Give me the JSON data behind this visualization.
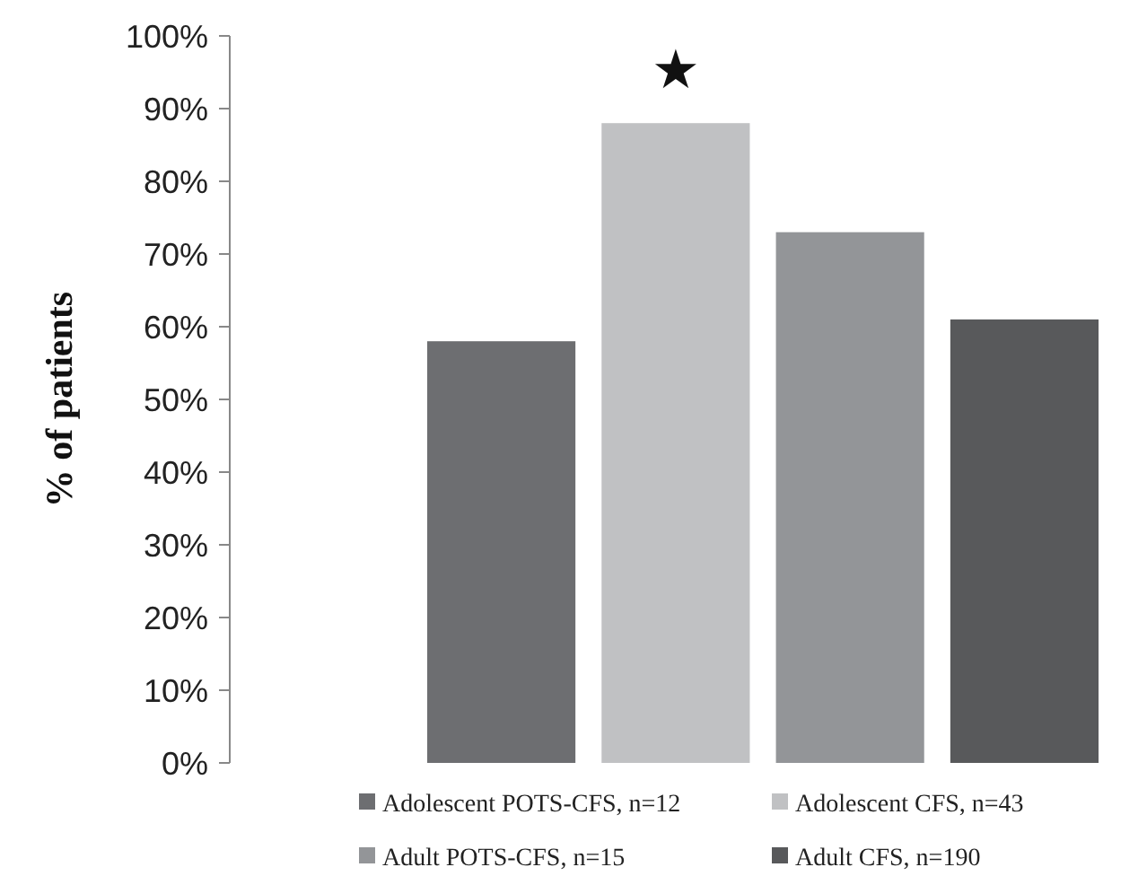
{
  "chart_data": {
    "type": "bar",
    "ylabel": "% of patients",
    "categories": [
      null
    ],
    "series": [
      {
        "name": "Adolescent POTS-CFS, n=12",
        "color": "#6d6e71",
        "values": [
          58
        ]
      },
      {
        "name": "Adolescent CFS, n=43",
        "color": "#c0c1c3",
        "values": [
          88
        ]
      },
      {
        "name": "Adult POTS-CFS, n=15",
        "color": "#939598",
        "values": [
          73
        ]
      },
      {
        "name": "Adult CFS, n=190",
        "color": "#58595b",
        "values": [
          61
        ]
      }
    ],
    "ylim": [
      0,
      100
    ],
    "yticks": [
      {
        "value": 0,
        "label": "0%"
      },
      {
        "value": 10,
        "label": "10%"
      },
      {
        "value": 20,
        "label": "20%"
      },
      {
        "value": 30,
        "label": "30%"
      },
      {
        "value": 40,
        "label": "40%"
      },
      {
        "value": 50,
        "label": "50%"
      },
      {
        "value": 60,
        "label": "60%"
      },
      {
        "value": 70,
        "label": "70%"
      },
      {
        "value": 80,
        "label": "80%"
      },
      {
        "value": 90,
        "label": "90%"
      },
      {
        "value": 100,
        "label": "100%"
      }
    ],
    "grid": false,
    "legend": "bottom",
    "annotations": [
      "★"
    ]
  }
}
